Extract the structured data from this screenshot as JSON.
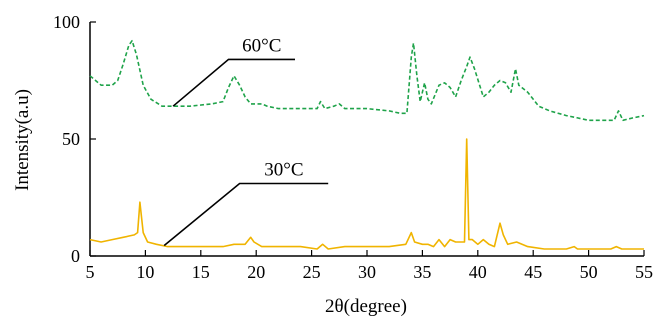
{
  "chart_data": {
    "type": "line",
    "xlabel": "2θ(degree)",
    "ylabel": "Intensity(a.u)",
    "xlim": [
      5,
      55
    ],
    "ylim": [
      0,
      100
    ],
    "x_ticks": [
      "5",
      "10",
      "15",
      "20",
      "25",
      "30",
      "35",
      "40",
      "45",
      "50",
      "55"
    ],
    "y_ticks": [
      "0",
      "50",
      "100"
    ],
    "grid": false,
    "series": [
      {
        "name": "60°C",
        "color": "#1fa34a",
        "style": "dashed",
        "points": [
          [
            5,
            77
          ],
          [
            6,
            73
          ],
          [
            7,
            73
          ],
          [
            7.5,
            75
          ],
          [
            8,
            82
          ],
          [
            8.5,
            90
          ],
          [
            8.8,
            92
          ],
          [
            9.2,
            86
          ],
          [
            9.8,
            73
          ],
          [
            10.5,
            67
          ],
          [
            11.5,
            64
          ],
          [
            12.5,
            64
          ],
          [
            14,
            64
          ],
          [
            16,
            65
          ],
          [
            17,
            66
          ],
          [
            17.5,
            72
          ],
          [
            18,
            77
          ],
          [
            18.5,
            73
          ],
          [
            19,
            68
          ],
          [
            19.5,
            65
          ],
          [
            20.5,
            65
          ],
          [
            21,
            64
          ],
          [
            22,
            63
          ],
          [
            24,
            63
          ],
          [
            25.5,
            63
          ],
          [
            25.8,
            66
          ],
          [
            26.2,
            63
          ],
          [
            27,
            64
          ],
          [
            27.5,
            65
          ],
          [
            28,
            63
          ],
          [
            30,
            63
          ],
          [
            32,
            62
          ],
          [
            33,
            61
          ],
          [
            33.6,
            61
          ],
          [
            34,
            85
          ],
          [
            34.2,
            91
          ],
          [
            34.5,
            77
          ],
          [
            34.8,
            66
          ],
          [
            35.2,
            74
          ],
          [
            35.5,
            67
          ],
          [
            35.8,
            65
          ],
          [
            36.5,
            73
          ],
          [
            37,
            74
          ],
          [
            37.5,
            72
          ],
          [
            38,
            68
          ],
          [
            38.5,
            75
          ],
          [
            39,
            81
          ],
          [
            39.3,
            85
          ],
          [
            39.7,
            80
          ],
          [
            40.5,
            68
          ],
          [
            41,
            70
          ],
          [
            41.5,
            73
          ],
          [
            42,
            75
          ],
          [
            42.5,
            74
          ],
          [
            43,
            70
          ],
          [
            43.4,
            80
          ],
          [
            43.7,
            73
          ],
          [
            44.5,
            70
          ],
          [
            45.5,
            64
          ],
          [
            46.5,
            62
          ],
          [
            48,
            60
          ],
          [
            49,
            59
          ],
          [
            50,
            58
          ],
          [
            51,
            58
          ],
          [
            52.3,
            58
          ],
          [
            52.7,
            62
          ],
          [
            53.1,
            58
          ],
          [
            54,
            59
          ],
          [
            55,
            60
          ]
        ]
      },
      {
        "name": "30°C",
        "color": "#f0b400",
        "style": "solid",
        "points": [
          [
            5,
            7
          ],
          [
            6,
            6
          ],
          [
            7,
            7
          ],
          [
            8,
            8
          ],
          [
            9,
            9
          ],
          [
            9.3,
            10
          ],
          [
            9.5,
            23
          ],
          [
            9.8,
            10
          ],
          [
            10.2,
            6
          ],
          [
            11,
            5
          ],
          [
            12,
            4
          ],
          [
            14,
            4
          ],
          [
            16,
            4
          ],
          [
            17,
            4
          ],
          [
            18,
            5
          ],
          [
            19,
            5
          ],
          [
            19.5,
            8
          ],
          [
            19.8,
            6
          ],
          [
            20.5,
            4
          ],
          [
            22,
            4
          ],
          [
            24,
            4
          ],
          [
            25.5,
            3
          ],
          [
            26,
            5
          ],
          [
            26.5,
            3
          ],
          [
            28,
            4
          ],
          [
            30,
            4
          ],
          [
            32,
            4
          ],
          [
            33.5,
            5
          ],
          [
            34,
            10
          ],
          [
            34.3,
            6
          ],
          [
            35,
            5
          ],
          [
            35.5,
            5
          ],
          [
            36,
            4
          ],
          [
            36.5,
            7
          ],
          [
            37,
            4
          ],
          [
            37.5,
            7
          ],
          [
            38,
            6
          ],
          [
            38.8,
            6
          ],
          [
            39,
            50
          ],
          [
            39.2,
            7
          ],
          [
            39.5,
            7
          ],
          [
            40,
            5
          ],
          [
            40.5,
            7
          ],
          [
            41,
            5
          ],
          [
            41.5,
            4
          ],
          [
            42,
            14
          ],
          [
            42.3,
            9
          ],
          [
            42.7,
            5
          ],
          [
            43.5,
            6
          ],
          [
            44.5,
            4
          ],
          [
            46,
            3
          ],
          [
            48,
            3
          ],
          [
            48.7,
            4
          ],
          [
            49,
            3
          ],
          [
            50,
            3
          ],
          [
            52,
            3
          ],
          [
            52.5,
            4
          ],
          [
            53,
            3
          ],
          [
            55,
            3
          ]
        ]
      }
    ],
    "annotations": [
      {
        "text": "60°C",
        "points": [
          [
            12.5,
            64
          ],
          [
            17.5,
            84
          ],
          [
            23.5,
            84
          ]
        ]
      },
      {
        "text": "30°C",
        "points": [
          [
            11.7,
            4.5
          ],
          [
            18.5,
            31
          ],
          [
            26.5,
            31
          ]
        ]
      }
    ]
  }
}
